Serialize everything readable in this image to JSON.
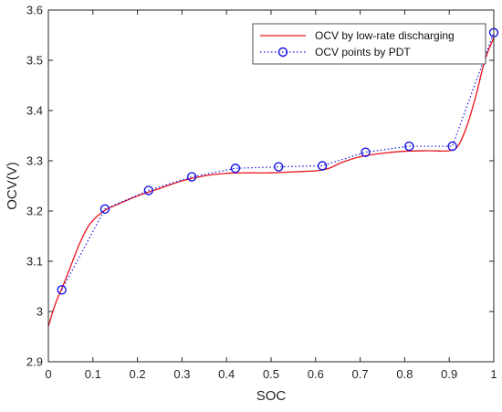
{
  "chart_data": {
    "type": "line",
    "xlabel": "SOC",
    "ylabel": "OCV(V)",
    "xlim": [
      0,
      1
    ],
    "ylim": [
      2.9,
      3.6
    ],
    "xticks": [
      0,
      0.1,
      0.2,
      0.3,
      0.4,
      0.5,
      0.6,
      0.7,
      0.8,
      0.9,
      1
    ],
    "xtick_labels": [
      "0",
      "0.1",
      "0.2",
      "0.3",
      "0.4",
      "0.5",
      "0.6",
      "0.7",
      "0.8",
      "0.9",
      "1"
    ],
    "yticks": [
      2.9,
      3.0,
      3.1,
      3.2,
      3.3,
      3.4,
      3.5,
      3.6
    ],
    "ytick_labels": [
      "2.9",
      "3",
      "3.1",
      "3.2",
      "3.3",
      "3.4",
      "3.5",
      "3.6"
    ],
    "grid": false,
    "legend_position": "top-right",
    "series": [
      {
        "name": "OCV by low-rate discharging",
        "color": "#e8141c",
        "style": "solid",
        "marker": "none",
        "x": [
          0,
          0.01,
          0.02,
          0.03,
          0.05,
          0.07,
          0.09,
          0.11,
          0.13,
          0.16,
          0.2,
          0.25,
          0.3,
          0.35,
          0.4,
          0.45,
          0.5,
          0.55,
          0.6,
          0.63,
          0.66,
          0.7,
          0.75,
          0.8,
          0.85,
          0.9,
          0.92,
          0.94,
          0.96,
          0.98,
          1.0
        ],
        "y": [
          2.97,
          3.0,
          3.025,
          3.045,
          3.09,
          3.135,
          3.17,
          3.19,
          3.203,
          3.215,
          3.23,
          3.245,
          3.26,
          3.27,
          3.275,
          3.276,
          3.276,
          3.278,
          3.28,
          3.285,
          3.297,
          3.308,
          3.315,
          3.319,
          3.32,
          3.32,
          3.33,
          3.37,
          3.43,
          3.5,
          3.545
        ]
      },
      {
        "name": "OCV points by PDT",
        "color": "#1414e6",
        "style": "dotted",
        "marker": "circle",
        "x": [
          0.03,
          0.127,
          0.225,
          0.322,
          0.42,
          0.517,
          0.615,
          0.712,
          0.81,
          0.907,
          1.0
        ],
        "y": [
          3.043,
          3.204,
          3.241,
          3.268,
          3.285,
          3.288,
          3.29,
          3.317,
          3.329,
          3.329,
          3.555
        ]
      }
    ]
  }
}
